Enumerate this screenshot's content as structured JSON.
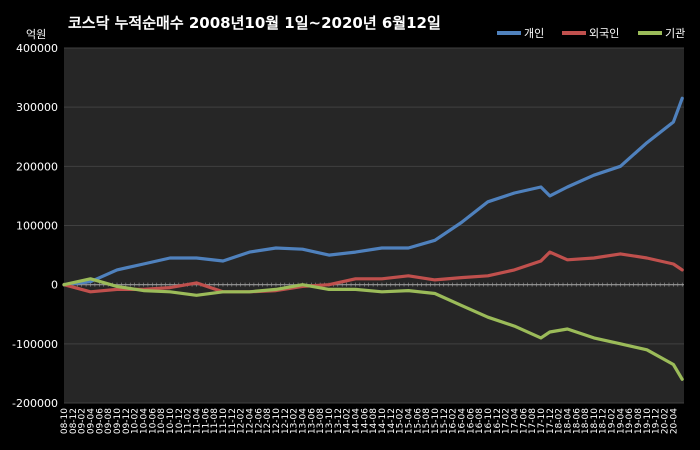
{
  "chart_data": {
    "type": "line",
    "title": "코스닥 누적순매수 2008년10월 1일~2020년 6월12일",
    "y_unit": "억원",
    "ylim": [
      -200000,
      400000
    ],
    "y_ticks": [
      "400000",
      "300000",
      "200000",
      "100000",
      "0",
      "-100000",
      "-200000"
    ],
    "y_tick_values": [
      400000,
      300000,
      200000,
      100000,
      0,
      -100000,
      -200000
    ],
    "legend_position": "top-right",
    "x_tick_labels": [
      "08-10",
      "08-12",
      "09-02",
      "09-04",
      "09-06",
      "09-08",
      "09-10",
      "09-12",
      "10-02",
      "10-04",
      "10-06",
      "10-08",
      "10-10",
      "10-12",
      "11-02",
      "11-04",
      "11-06",
      "11-08",
      "11-10",
      "11-12",
      "12-02",
      "12-04",
      "12-06",
      "12-08",
      "12-10",
      "12-12",
      "13-02",
      "13-04",
      "13-06",
      "13-08",
      "13-10",
      "13-12",
      "14-02",
      "14-04",
      "14-06",
      "14-08",
      "14-10",
      "14-12",
      "15-02",
      "15-04",
      "15-06",
      "15-08",
      "15-10",
      "15-12",
      "16-02",
      "16-04",
      "16-06",
      "16-08",
      "16-10",
      "16-12",
      "17-02",
      "17-04",
      "17-06",
      "17-08",
      "17-10",
      "17-12",
      "18-02",
      "18-04",
      "18-06",
      "18-08",
      "18-10",
      "18-12",
      "19-02",
      "19-04",
      "19-06",
      "19-08",
      "19-10",
      "19-12",
      "20-02",
      "20-04"
    ],
    "x": [
      "08-10",
      "09-04",
      "09-10",
      "10-04",
      "10-10",
      "11-04",
      "11-10",
      "12-04",
      "12-10",
      "13-04",
      "13-10",
      "14-04",
      "14-10",
      "15-04",
      "15-10",
      "16-04",
      "16-10",
      "17-04",
      "17-10",
      "17-12",
      "18-04",
      "18-10",
      "19-04",
      "19-10",
      "20-04",
      "20-06"
    ],
    "series": [
      {
        "name": "개인",
        "color": "#4f81bd",
        "values": [
          0,
          5000,
          25000,
          35000,
          45000,
          45000,
          40000,
          55000,
          62000,
          60000,
          50000,
          55000,
          62000,
          62000,
          75000,
          105000,
          140000,
          155000,
          165000,
          150000,
          165000,
          185000,
          200000,
          240000,
          275000,
          315000
        ]
      },
      {
        "name": "외국인",
        "color": "#c0504d",
        "values": [
          0,
          -12000,
          -8000,
          -8000,
          -5000,
          3000,
          -12000,
          -12000,
          -10000,
          -3000,
          0,
          10000,
          10000,
          15000,
          8000,
          12000,
          15000,
          25000,
          40000,
          55000,
          42000,
          45000,
          52000,
          45000,
          35000,
          25000
        ]
      },
      {
        "name": "기관",
        "color": "#9bbb59",
        "values": [
          0,
          10000,
          -3000,
          -10000,
          -12000,
          -18000,
          -12000,
          -12000,
          -8000,
          0,
          -8000,
          -8000,
          -12000,
          -10000,
          -15000,
          -35000,
          -55000,
          -70000,
          -90000,
          -80000,
          -75000,
          -90000,
          -100000,
          -110000,
          -135000,
          -160000
        ]
      }
    ]
  }
}
